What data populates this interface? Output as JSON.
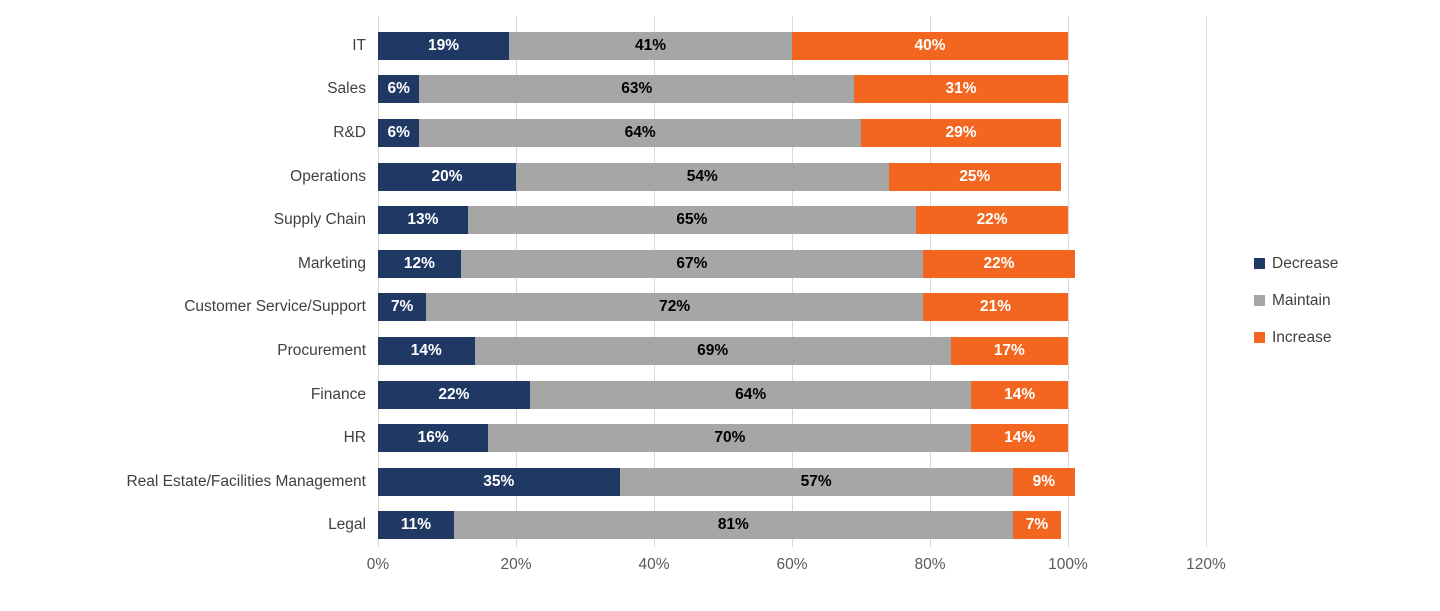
{
  "chart_data": {
    "type": "bar",
    "orientation": "horizontal",
    "stacked": true,
    "title": "",
    "xlabel": "",
    "ylabel": "",
    "categories": [
      "IT",
      "Sales",
      "R&D",
      "Operations",
      "Supply Chain",
      "Marketing",
      "Customer Service/Support",
      "Procurement",
      "Finance",
      "HR",
      "Real Estate/Facilities Management",
      "Legal"
    ],
    "series": [
      {
        "name": "Decrease",
        "color": "#1f3864",
        "label_color": "#ffffff",
        "values": [
          19,
          6,
          6,
          20,
          13,
          12,
          7,
          14,
          22,
          16,
          35,
          11
        ]
      },
      {
        "name": "Maintain",
        "color": "#a6a6a6",
        "label_color": "#000000",
        "values": [
          41,
          63,
          64,
          54,
          65,
          67,
          72,
          69,
          64,
          70,
          57,
          81
        ]
      },
      {
        "name": "Increase",
        "color": "#f2661f",
        "label_color": "#ffffff",
        "values": [
          40,
          31,
          29,
          25,
          22,
          22,
          21,
          17,
          14,
          14,
          9,
          7
        ]
      }
    ],
    "value_suffix": "%",
    "x_axis": {
      "max": 120,
      "tick_values": [
        0,
        20,
        40,
        60,
        80,
        100,
        120
      ],
      "ticks": [
        "0%",
        "20%",
        "40%",
        "60%",
        "80%",
        "100%",
        "120%"
      ]
    },
    "legend": {
      "position": "right",
      "items": [
        "Decrease",
        "Maintain",
        "Increase"
      ]
    },
    "grid": true,
    "gridline_color": "#d9d9d9"
  }
}
